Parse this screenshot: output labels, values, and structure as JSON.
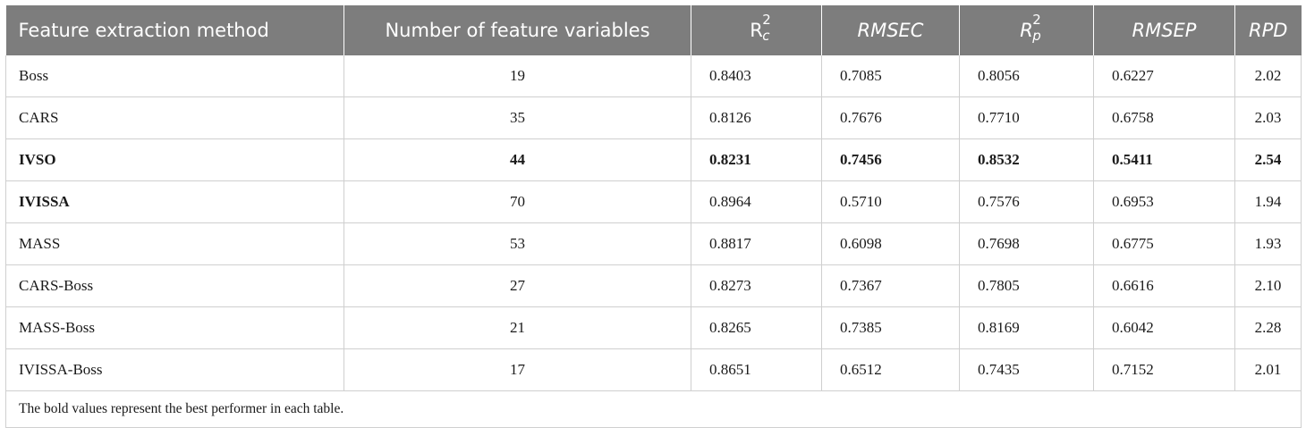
{
  "table": {
    "headers": {
      "method": "Feature extraction method",
      "num_vars": "Number of feature variables",
      "rc2_base": "R",
      "rc2_sup": "2",
      "rc2_sub": "c",
      "rmsec": "RMSEC",
      "rp2_base": "R",
      "rp2_sup": "2",
      "rp2_sub": "p",
      "rmsep": "RMSEP",
      "rpd": "RPD"
    },
    "rows": [
      {
        "method": "Boss",
        "num_vars": "19",
        "rc2": "0.8403",
        "rmsec": "0.7085",
        "rp2": "0.8056",
        "rmsep": "0.6227",
        "rpd": "2.02"
      },
      {
        "method": "CARS",
        "num_vars": "35",
        "rc2": "0.8126",
        "rmsec": "0.7676",
        "rp2": "0.7710",
        "rmsep": "0.6758",
        "rpd": "2.03"
      },
      {
        "method": "IVSO",
        "num_vars": "44",
        "rc2": "0.8231",
        "rmsec": "0.7456",
        "rp2": "0.8532",
        "rmsep": "0.5411",
        "rpd": "2.54"
      },
      {
        "method": "IVISSA",
        "num_vars": "70",
        "rc2": "0.8964",
        "rmsec": "0.5710",
        "rp2": "0.7576",
        "rmsep": "0.6953",
        "rpd": "1.94"
      },
      {
        "method": "MASS",
        "num_vars": "53",
        "rc2": "0.8817",
        "rmsec": "0.6098",
        "rp2": "0.7698",
        "rmsep": "0.6775",
        "rpd": "1.93"
      },
      {
        "method": "CARS-Boss",
        "num_vars": "27",
        "rc2": "0.8273",
        "rmsec": "0.7367",
        "rp2": "0.7805",
        "rmsep": "0.6616",
        "rpd": "2.10"
      },
      {
        "method": "MASS-Boss",
        "num_vars": "21",
        "rc2": "0.8265",
        "rmsec": "0.7385",
        "rp2": "0.8169",
        "rmsep": "0.6042",
        "rpd": "2.28"
      },
      {
        "method": "IVISSA-Boss",
        "num_vars": "17",
        "rc2": "0.8651",
        "rmsec": "0.6512",
        "rp2": "0.7435",
        "rmsep": "0.7152",
        "rpd": "2.01"
      }
    ],
    "footnote": "The bold values represent the best performer in each table."
  }
}
